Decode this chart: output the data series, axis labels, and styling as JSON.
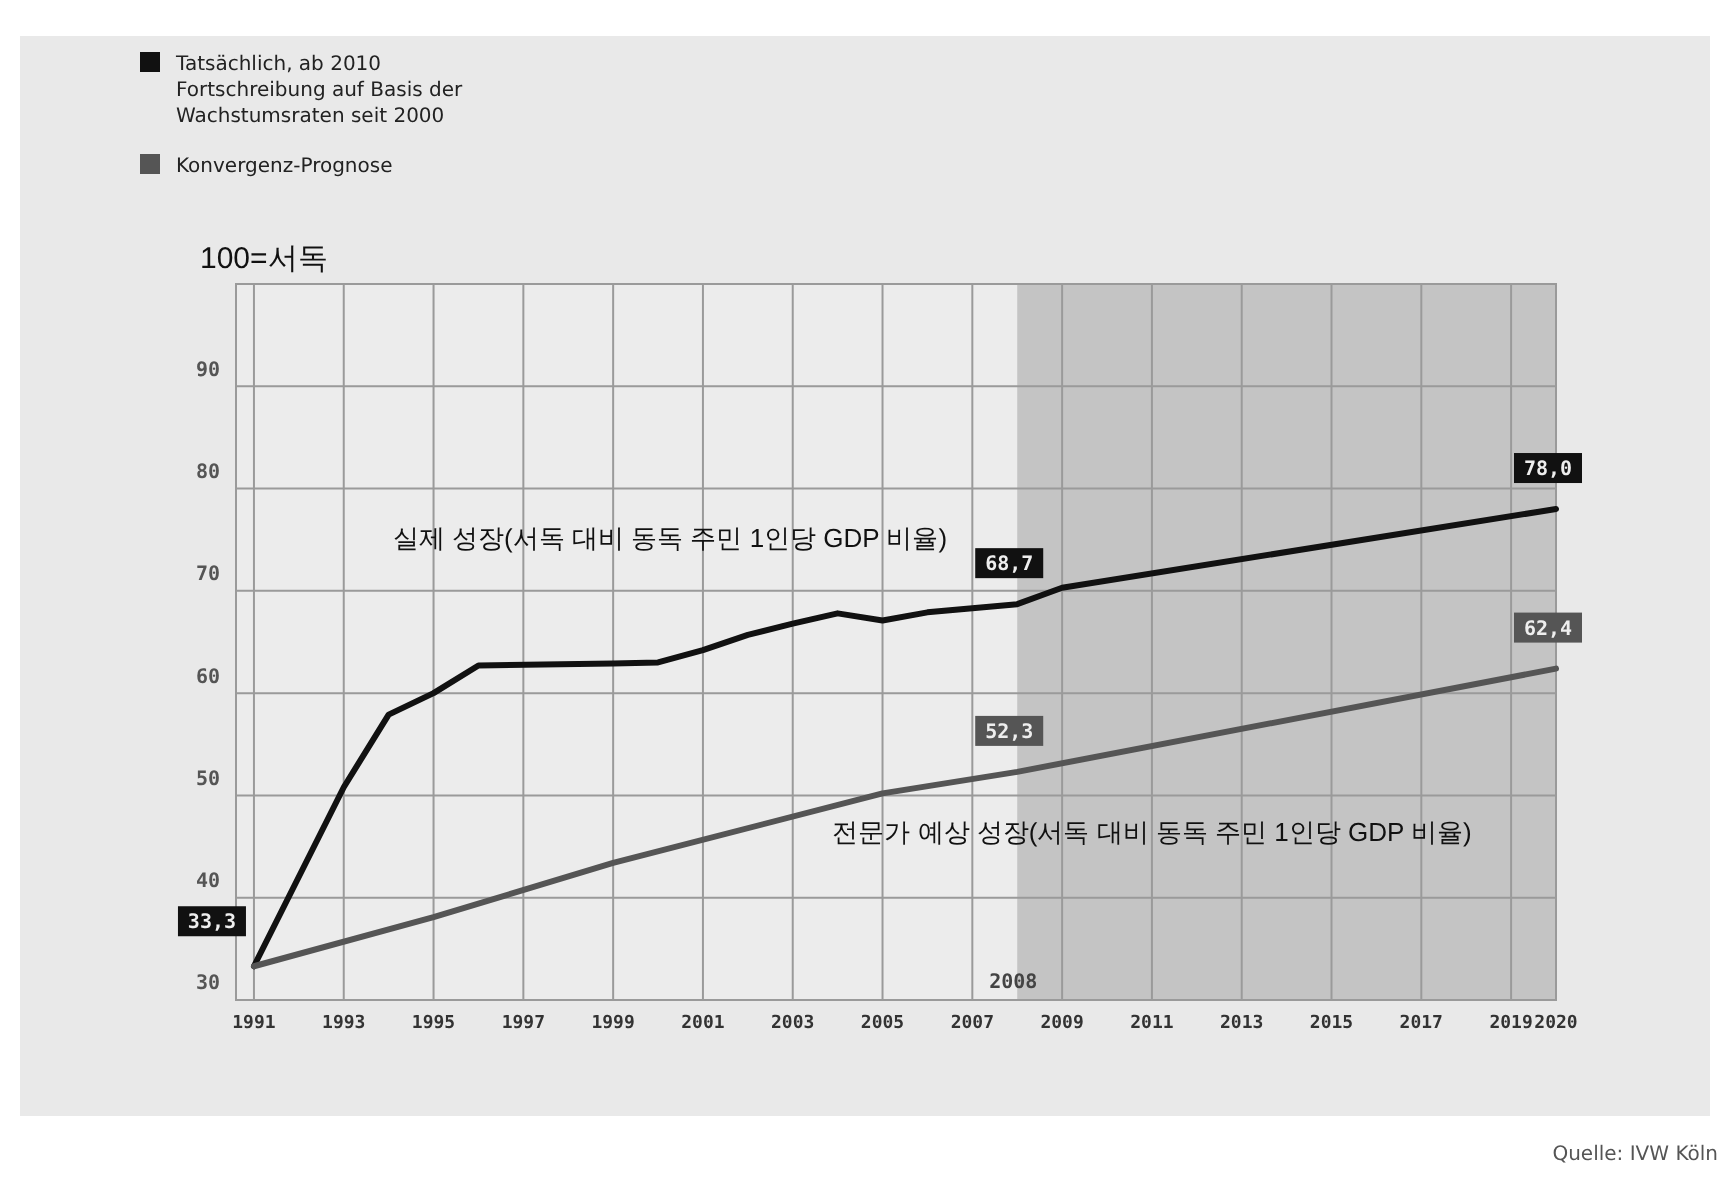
{
  "chart_data": {
    "type": "line",
    "ylabel": "100=서독",
    "x": [
      1991,
      1993,
      1994,
      1995,
      1996,
      1999,
      2000,
      2001,
      2002,
      2003,
      2004,
      2005,
      2006,
      2007,
      2008,
      2009,
      2020
    ],
    "series": [
      {
        "name": "Tatsächlich, ab 2010 Fortschreibung auf Basis der Wachstumsraten seit 2000",
        "color": "#111111",
        "values": [
          33.3,
          50.8,
          57.9,
          60.0,
          62.7,
          62.9,
          63.0,
          64.2,
          65.7,
          66.8,
          67.8,
          67.1,
          67.9,
          68.3,
          68.7,
          70.3,
          78.0
        ],
        "value_labels": [
          "33,3",
          null,
          null,
          null,
          null,
          null,
          null,
          null,
          null,
          null,
          null,
          null,
          null,
          null,
          "68,7",
          null,
          "78,0"
        ]
      },
      {
        "name": "Konvergenz-Prognose",
        "color": "#555555",
        "x": [
          1991,
          1995,
          1999,
          2005,
          2008,
          2020
        ],
        "values": [
          33.3,
          38.1,
          43.4,
          50.2,
          52.3,
          62.4
        ],
        "value_labels": [
          null,
          null,
          null,
          null,
          "52,3",
          "62,4"
        ]
      }
    ],
    "xlim": [
      1990.6,
      2020
    ],
    "xticks": [
      1991,
      1993,
      1995,
      1997,
      1999,
      2001,
      2003,
      2005,
      2007,
      2009,
      2011,
      2013,
      2015,
      2017,
      2019,
      2020
    ],
    "ylim": [
      30,
      100
    ],
    "yticks": [
      30,
      40,
      50,
      60,
      70,
      80,
      90,
      {
        "value": 100,
        "label": null
      }
    ],
    "grid": true,
    "legend": "top left",
    "line_style": "solid",
    "marker": "none",
    "bands": [
      {
        "axis": "x",
        "from": 2008,
        "to": 2020,
        "label": "2008",
        "color": "#c4c4c4"
      }
    ],
    "annotations": [
      "실제 성장(서독 대비 동독 주민 1인당 GDP 비율)",
      "전문가 예상 성장(서독 대비 동독 주민 1인당 GDP 비율)",
      "Quelle: IVW Köln"
    ]
  }
}
